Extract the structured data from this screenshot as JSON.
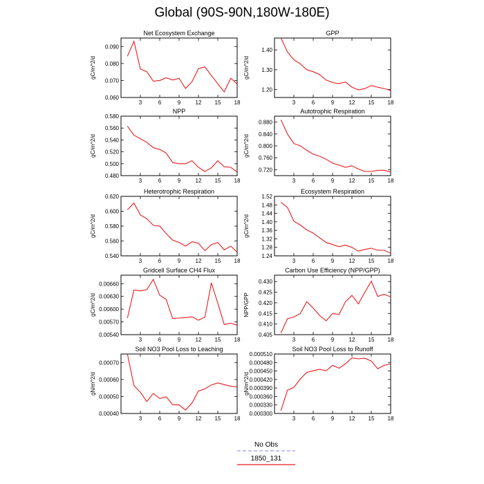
{
  "title": "Global (90S-90N,180W-180E)",
  "x": [
    1,
    2,
    3,
    4,
    5,
    6,
    7,
    8,
    9,
    10,
    11,
    12,
    13,
    14,
    15,
    16,
    17,
    18
  ],
  "xticks": [
    "3",
    "6",
    "9",
    "12",
    "15",
    "18"
  ],
  "xtick_values": [
    3,
    6,
    9,
    12,
    15,
    18
  ],
  "legend": {
    "obs": "No Obs",
    "model": "1850_131"
  },
  "colors": {
    "model": "#e8191c",
    "obs": "#9999ee"
  },
  "chart_data": [
    {
      "type": "line",
      "title": "Net Ecosystem Exchange",
      "ylabel": "gC/m^2/d",
      "ylim": [
        0.06,
        0.095
      ],
      "yticks": [
        "0.060",
        "0.070",
        "0.080",
        "0.090"
      ],
      "ytick_values": [
        0.06,
        0.07,
        0.08,
        0.09
      ],
      "values": [
        0.0843,
        0.0931,
        0.0768,
        0.0752,
        0.0696,
        0.07,
        0.0716,
        0.0703,
        0.0713,
        0.0653,
        0.0693,
        0.077,
        0.078,
        0.073,
        0.068,
        0.0633,
        0.0713,
        0.068
      ]
    },
    {
      "type": "line",
      "title": "GPP",
      "ylabel": "gC/m^2/d",
      "ylim": [
        1.16,
        1.46
      ],
      "yticks": [
        "1.20",
        "1.30",
        "1.40"
      ],
      "ytick_values": [
        1.2,
        1.3,
        1.4
      ],
      "values": [
        1.46,
        1.39,
        1.35,
        1.33,
        1.3,
        1.29,
        1.275,
        1.248,
        1.235,
        1.23,
        1.238,
        1.212,
        1.198,
        1.205,
        1.22,
        1.212,
        1.205,
        1.195
      ]
    },
    {
      "type": "line",
      "title": "NPP",
      "ylabel": "gC/m^2/d",
      "ylim": [
        0.48,
        0.58
      ],
      "yticks": [
        "0.480",
        "0.500",
        "0.520",
        "0.540",
        "0.560",
        "0.580"
      ],
      "ytick_values": [
        0.48,
        0.5,
        0.52,
        0.54,
        0.56,
        0.58
      ],
      "values": [
        0.563,
        0.548,
        0.542,
        0.536,
        0.527,
        0.524,
        0.518,
        0.502,
        0.5,
        0.5,
        0.505,
        0.494,
        0.487,
        0.493,
        0.505,
        0.495,
        0.494,
        0.486
      ]
    },
    {
      "type": "line",
      "title": "Autotrophic Respiration",
      "ylabel": "gC/m^2/d",
      "ylim": [
        0.7,
        0.9
      ],
      "yticks": [
        "0.720",
        "0.760",
        "0.800",
        "0.840",
        "0.880"
      ],
      "ytick_values": [
        0.72,
        0.76,
        0.8,
        0.84,
        0.88
      ],
      "values": [
        0.888,
        0.84,
        0.808,
        0.8,
        0.785,
        0.772,
        0.765,
        0.755,
        0.742,
        0.735,
        0.728,
        0.733,
        0.722,
        0.714,
        0.714,
        0.718,
        0.718,
        0.712
      ]
    },
    {
      "type": "line",
      "title": "Heterotrophic Respiration",
      "ylabel": "gC/m^2/d",
      "ylim": [
        0.54,
        0.62
      ],
      "yticks": [
        "0.540",
        "0.560",
        "0.580",
        "0.600",
        "0.620"
      ],
      "ytick_values": [
        0.54,
        0.56,
        0.58,
        0.6,
        0.62
      ],
      "values": [
        0.602,
        0.611,
        0.595,
        0.59,
        0.581,
        0.58,
        0.57,
        0.561,
        0.558,
        0.553,
        0.559,
        0.557,
        0.547,
        0.555,
        0.558,
        0.548,
        0.553,
        0.545
      ]
    },
    {
      "type": "line",
      "title": "Ecosystem Respiration",
      "ylabel": "gC/m^2/d",
      "ylim": [
        1.24,
        1.52
      ],
      "yticks": [
        "1.24",
        "1.28",
        "1.32",
        "1.36",
        "1.40",
        "1.44",
        "1.48",
        "1.52"
      ],
      "ytick_values": [
        1.24,
        1.28,
        1.32,
        1.36,
        1.4,
        1.44,
        1.48,
        1.52
      ],
      "values": [
        1.492,
        1.468,
        1.403,
        1.385,
        1.362,
        1.347,
        1.325,
        1.303,
        1.293,
        1.283,
        1.29,
        1.28,
        1.262,
        1.27,
        1.276,
        1.266,
        1.266,
        1.252
      ]
    },
    {
      "type": "line",
      "title": "Gridcell Surface CH4 Flux",
      "ylabel": "gC/m^2/d",
      "ylim": [
        0.0054,
        0.0068
      ],
      "yticks": [
        "0.00540",
        "0.00570",
        "0.00600",
        "0.00630",
        "0.00660"
      ],
      "ytick_values": [
        0.0054,
        0.0057,
        0.006,
        0.0063,
        0.0066
      ],
      "values": [
        0.00579,
        0.00645,
        0.00643,
        0.00646,
        0.0067,
        0.00633,
        0.00623,
        0.00578,
        0.00579,
        0.0058,
        0.00582,
        0.00574,
        0.00581,
        0.00662,
        0.00614,
        0.00564,
        0.00567,
        0.00562
      ]
    },
    {
      "type": "line",
      "title": "Carbon Use Efficiency (NPP/GPP)",
      "ylabel": "NPP/GPP",
      "ylim": [
        0.405,
        0.433
      ],
      "yticks": [
        "0.405",
        "0.410",
        "0.415",
        "0.420",
        "0.425",
        "0.430"
      ],
      "ytick_values": [
        0.405,
        0.41,
        0.415,
        0.42,
        0.425,
        0.43
      ],
      "values": [
        0.4058,
        0.4125,
        0.4133,
        0.415,
        0.4205,
        0.4175,
        0.414,
        0.4115,
        0.415,
        0.4145,
        0.4205,
        0.4235,
        0.4195,
        0.425,
        0.4302,
        0.423,
        0.424,
        0.4228
      ]
    },
    {
      "type": "line",
      "title": "Soil NO3 Pool Loss to Leaching",
      "ylabel": "gN/m^2/d",
      "ylim": [
        0.0004,
        0.00075
      ],
      "yticks": [
        "0.00040",
        "0.00050",
        "0.00060",
        "0.00070"
      ],
      "ytick_values": [
        0.0004,
        0.0005,
        0.0006,
        0.0007
      ],
      "values": [
        0.00075,
        0.000565,
        0.000525,
        0.00047,
        0.000518,
        0.000488,
        0.000498,
        0.000452,
        0.00045,
        0.00042,
        0.000462,
        0.000532,
        0.000545,
        0.000568,
        0.00058,
        0.00057,
        0.00056,
        0.000557
      ]
    },
    {
      "type": "line",
      "title": "Soil NO3 Pool Loss to Runoff",
      "ylabel": "gN/m^2/d",
      "ylim": [
        0.0003,
        0.00051
      ],
      "yticks": [
        "0.000300",
        "0.000330",
        "0.000360",
        "0.000390",
        "0.000420",
        "0.000450",
        "0.000480",
        "0.000510"
      ],
      "ytick_values": [
        0.0003,
        0.00033,
        0.00036,
        0.00039,
        0.00042,
        0.00045,
        0.00048,
        0.00051
      ],
      "values": [
        0.00031,
        0.000382,
        0.000392,
        0.000422,
        0.000445,
        0.000451,
        0.000456,
        0.000451,
        0.00047,
        0.00046,
        0.000476,
        0.000496,
        0.000493,
        0.000495,
        0.000485,
        0.000458,
        0.00047,
        0.000475
      ]
    }
  ]
}
